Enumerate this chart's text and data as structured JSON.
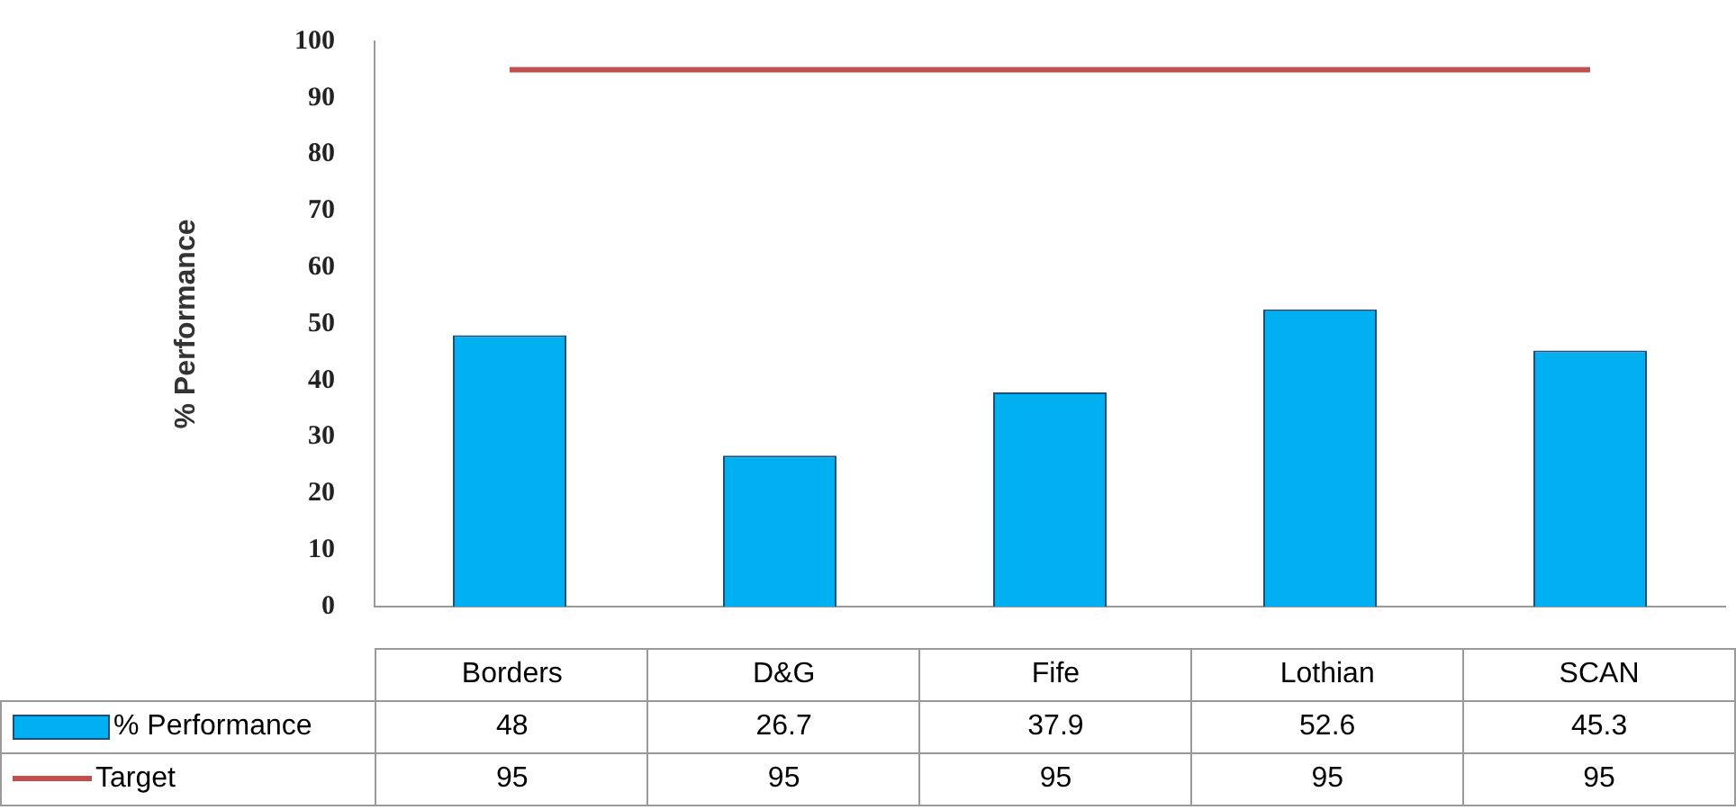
{
  "chart_data": {
    "type": "bar",
    "ylabel": "% Performance",
    "categories": [
      "Borders",
      "D&G",
      "Fife",
      "Lothian",
      "SCAN"
    ],
    "series": [
      {
        "name": "% Performance",
        "color": "#00b0f0",
        "values": [
          48,
          26.7,
          37.9,
          52.6,
          45.3
        ]
      },
      {
        "name": "Target",
        "type": "line",
        "color": "#c0504d",
        "values": [
          95,
          95,
          95,
          95,
          95
        ]
      }
    ],
    "ylim": [
      0,
      100
    ],
    "yticks": [
      0,
      10,
      20,
      30,
      40,
      50,
      60,
      70,
      80,
      90,
      100
    ],
    "data_labels": true,
    "legend": "bottom"
  }
}
